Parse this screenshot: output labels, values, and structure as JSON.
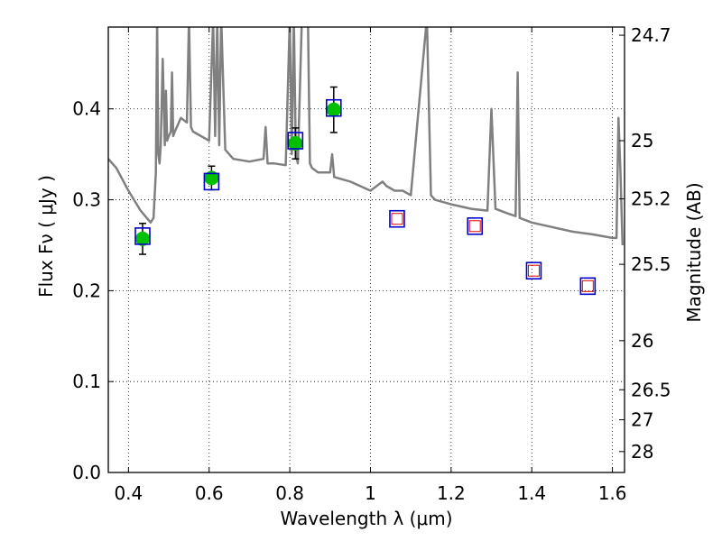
{
  "chart_data": {
    "type": "scatter",
    "xlabel": "Wavelength  λ (μm)",
    "ylabel": "Flux  Fν  ( μJy )",
    "y2label": "Magnitude (AB)",
    "xlim": [
      0.35,
      1.63
    ],
    "ylim": [
      0.0,
      0.49
    ],
    "x_ticks": [
      0.4,
      0.6,
      0.8,
      1.0,
      1.2,
      1.4,
      1.6
    ],
    "x_tick_labels": [
      "0.4",
      "0.6",
      "0.8",
      "1",
      "1.2",
      "1.4",
      "1.6"
    ],
    "y_ticks": [
      0.0,
      0.1,
      0.2,
      0.3,
      0.4
    ],
    "y_tick_labels": [
      "0.0",
      "0.1",
      "0.2",
      "0.3",
      "0.4"
    ],
    "y2_ticks": [
      {
        "label": "24.7",
        "flux": 0.481
      },
      {
        "label": "25",
        "flux": 0.365
      },
      {
        "label": "25.2",
        "flux": 0.301
      },
      {
        "label": "25.5",
        "flux": 0.229
      },
      {
        "label": "26",
        "flux": 0.145
      },
      {
        "label": "26.5",
        "flux": 0.091
      },
      {
        "label": "27",
        "flux": 0.058
      },
      {
        "label": "28",
        "flux": 0.023
      }
    ],
    "grid": true,
    "series": [
      {
        "marker": "filled-circle",
        "color": "#00c000",
        "x": [
          0.435,
          0.606,
          0.814,
          0.909
        ],
        "y": [
          0.257,
          0.324,
          0.362,
          0.399
        ],
        "yerr": [
          0.017,
          0.013,
          0.017,
          0.025
        ]
      },
      {
        "marker": "open-square",
        "color": "#0000cc",
        "x": [
          0.435,
          0.606,
          0.814,
          0.909,
          1.066,
          1.259,
          1.405,
          1.539
        ],
        "y": [
          0.26,
          0.32,
          0.365,
          0.401,
          0.279,
          0.271,
          0.222,
          0.205
        ]
      },
      {
        "marker": "small-open-square",
        "color": "#dd0000",
        "x": [
          1.066,
          1.259,
          1.405,
          1.539
        ],
        "y": [
          0.279,
          0.271,
          0.222,
          0.205
        ]
      }
    ],
    "spectrum": {
      "color": "#808080",
      "x": [
        0.35,
        0.37,
        0.4,
        0.43,
        0.455,
        0.462,
        0.468,
        0.471,
        0.474,
        0.477,
        0.48,
        0.485,
        0.49,
        0.493,
        0.496,
        0.5,
        0.505,
        0.508,
        0.511,
        0.515,
        0.52,
        0.53,
        0.545,
        0.55,
        0.555,
        0.56,
        0.58,
        0.6,
        0.61,
        0.615,
        0.62,
        0.625,
        0.63,
        0.64,
        0.66,
        0.7,
        0.735,
        0.74,
        0.745,
        0.76,
        0.79,
        0.8,
        0.805,
        0.81,
        0.815,
        0.82,
        0.83,
        0.845,
        0.85,
        0.855,
        0.87,
        0.9,
        0.905,
        0.91,
        0.95,
        1.0,
        1.03,
        1.04,
        1.06,
        1.08,
        1.1,
        1.14,
        1.15,
        1.16,
        1.2,
        1.25,
        1.29,
        1.3,
        1.31,
        1.34,
        1.36,
        1.365,
        1.37,
        1.4,
        1.45,
        1.5,
        1.55,
        1.6,
        1.61,
        1.615,
        1.62,
        1.625
      ],
      "y": [
        0.345,
        0.335,
        0.31,
        0.288,
        0.275,
        0.28,
        0.33,
        0.5,
        0.35,
        0.34,
        0.36,
        0.455,
        0.36,
        0.42,
        0.365,
        0.37,
        0.375,
        0.44,
        0.37,
        0.375,
        0.38,
        0.39,
        0.385,
        0.5,
        0.38,
        0.375,
        0.37,
        0.365,
        0.5,
        0.37,
        0.5,
        0.36,
        0.5,
        0.355,
        0.345,
        0.342,
        0.345,
        0.38,
        0.34,
        0.34,
        0.338,
        0.5,
        0.35,
        0.5,
        0.35,
        0.34,
        0.5,
        0.5,
        0.34,
        0.335,
        0.33,
        0.33,
        0.35,
        0.325,
        0.32,
        0.31,
        0.32,
        0.315,
        0.31,
        0.31,
        0.305,
        0.5,
        0.305,
        0.3,
        0.295,
        0.29,
        0.288,
        0.4,
        0.29,
        0.285,
        0.282,
        0.44,
        0.28,
        0.275,
        0.27,
        0.265,
        0.262,
        0.258,
        0.258,
        0.39,
        0.33,
        0.25
      ]
    }
  }
}
